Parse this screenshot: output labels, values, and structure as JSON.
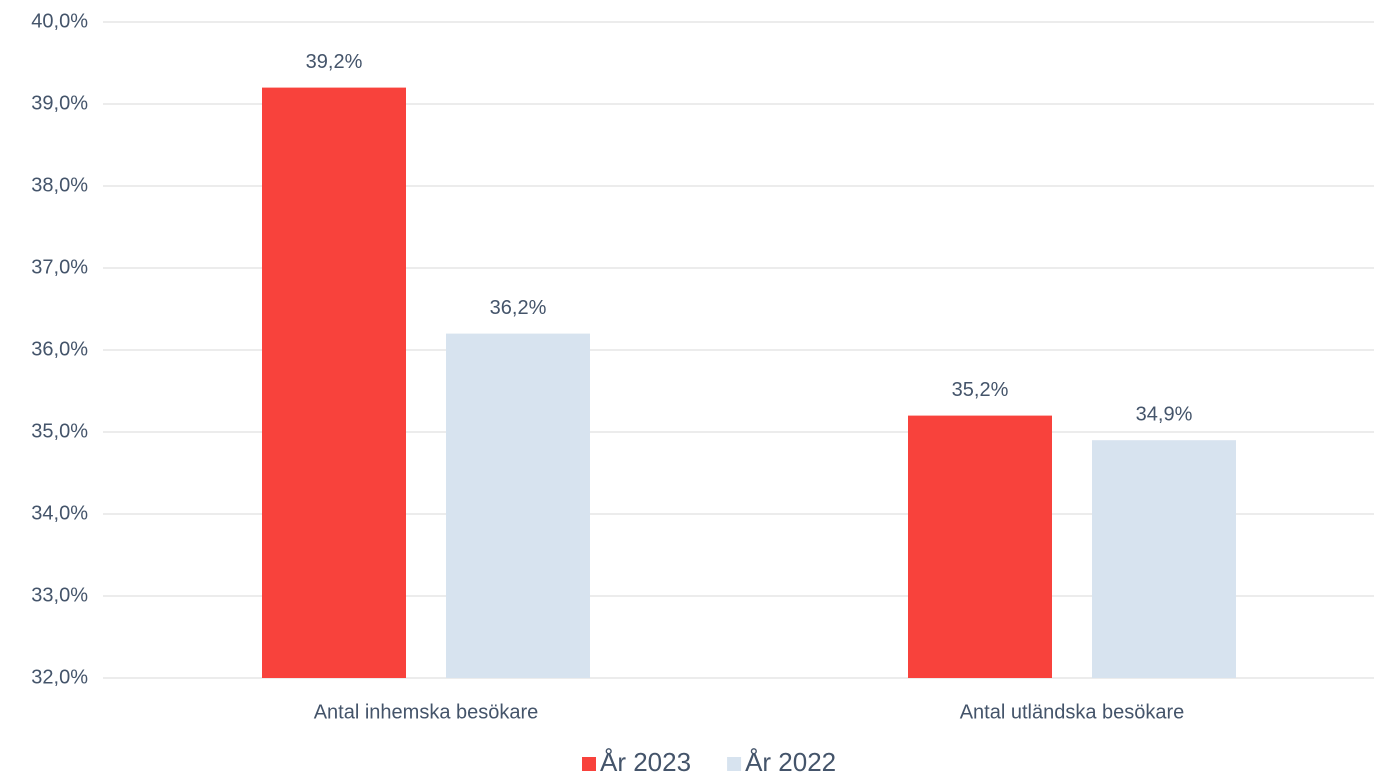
{
  "chart_data": {
    "type": "bar",
    "categories": [
      "Antal inhemska besökare",
      "Antal utländska besökare"
    ],
    "series": [
      {
        "name": "År 2023",
        "color": "#f8423c",
        "values": [
          39.2,
          35.2
        ],
        "value_labels": [
          "39,2%",
          "35,2%"
        ]
      },
      {
        "name": "År 2022",
        "color": "#d7e3ef",
        "values": [
          36.2,
          34.9
        ],
        "value_labels": [
          "36,2%",
          "34,9%"
        ]
      }
    ],
    "ylim": [
      32,
      40
    ],
    "yticks": [
      {
        "value": 32,
        "label": "32,0%"
      },
      {
        "value": 33,
        "label": "33,0%"
      },
      {
        "value": 34,
        "label": "34,0%"
      },
      {
        "value": 35,
        "label": "35,0%"
      },
      {
        "value": 36,
        "label": "36,0%"
      },
      {
        "value": 37,
        "label": "37,0%"
      },
      {
        "value": 38,
        "label": "38,0%"
      },
      {
        "value": 39,
        "label": "39,0%"
      },
      {
        "value": 40,
        "label": "40,0%"
      }
    ],
    "grid": true,
    "legend": "bottom"
  }
}
